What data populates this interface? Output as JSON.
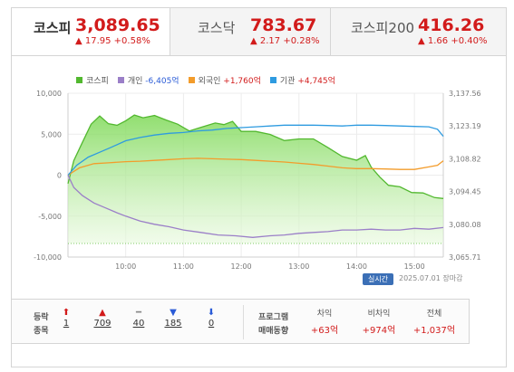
{
  "tabs": [
    {
      "name": "코스피",
      "value": "3,089.65",
      "change": "17.95 +0.58%"
    },
    {
      "name": "코스닥",
      "value": "783.67",
      "change": "2.17 +0.28%"
    },
    {
      "name": "코스피200",
      "value": "416.26",
      "change": "1.66 +0.40%"
    }
  ],
  "legend": [
    {
      "label": "코스피",
      "color": "#52b82f"
    },
    {
      "label": "개인",
      "value": "-6,405억",
      "color": "#9b7fc8",
      "value_color": "#2a5bd7"
    },
    {
      "label": "외국인",
      "value": "+1,760억",
      "color": "#f39c2b",
      "value_color": "#d21b1b"
    },
    {
      "label": "기관",
      "value": "+4,745억",
      "color": "#2e9be0",
      "value_color": "#d21b1b"
    }
  ],
  "chart_data": {
    "type": "line",
    "x_ticks": [
      "10:00",
      "11:00",
      "12:00",
      "13:00",
      "14:00",
      "15:00"
    ],
    "y_left_ticks": [
      "10,000",
      "5,000",
      "0",
      "-5,000",
      "-10,000"
    ],
    "y_right_ticks": [
      "3,137.56",
      "3,123.19",
      "3,108.82",
      "3,094.45",
      "3,080.08",
      "3,065.71"
    ],
    "y_left_range": [
      -10000,
      10000
    ],
    "y_right_range": [
      3065.71,
      3137.56
    ],
    "series": [
      {
        "name": "코스피",
        "axis": "right",
        "color": "#52b82f",
        "points": [
          [
            9.0,
            3097.9
          ],
          [
            9.1,
            3108.0
          ],
          [
            9.25,
            3116.0
          ],
          [
            9.4,
            3124.0
          ],
          [
            9.55,
            3127.6
          ],
          [
            9.7,
            3124.2
          ],
          [
            9.85,
            3123.5
          ],
          [
            10.0,
            3125.5
          ],
          [
            10.15,
            3128.0
          ],
          [
            10.3,
            3126.8
          ],
          [
            10.5,
            3127.8
          ],
          [
            10.7,
            3125.8
          ],
          [
            10.9,
            3124.0
          ],
          [
            11.1,
            3121.0
          ],
          [
            11.3,
            3122.6
          ],
          [
            11.55,
            3124.5
          ],
          [
            11.7,
            3123.8
          ],
          [
            11.85,
            3125.2
          ],
          [
            12.0,
            3120.8
          ],
          [
            12.25,
            3120.8
          ],
          [
            12.5,
            3119.5
          ],
          [
            12.75,
            3116.8
          ],
          [
            13.0,
            3117.5
          ],
          [
            13.25,
            3117.5
          ],
          [
            13.5,
            3113.8
          ],
          [
            13.75,
            3109.8
          ],
          [
            14.0,
            3108.2
          ],
          [
            14.15,
            3110.2
          ],
          [
            14.25,
            3105.2
          ],
          [
            14.4,
            3100.8
          ],
          [
            14.55,
            3097.2
          ],
          [
            14.75,
            3096.5
          ],
          [
            14.95,
            3094.0
          ],
          [
            15.15,
            3093.8
          ],
          [
            15.35,
            3091.8
          ],
          [
            15.5,
            3091.4
          ]
        ]
      },
      {
        "name": "개인",
        "axis": "left",
        "color": "#9b7fc8",
        "points": [
          [
            9.0,
            0
          ],
          [
            9.1,
            -1500
          ],
          [
            9.25,
            -2500
          ],
          [
            9.45,
            -3400
          ],
          [
            9.65,
            -4000
          ],
          [
            9.85,
            -4600
          ],
          [
            10.0,
            -5000
          ],
          [
            10.25,
            -5600
          ],
          [
            10.5,
            -6000
          ],
          [
            10.75,
            -6300
          ],
          [
            11.0,
            -6700
          ],
          [
            11.3,
            -7000
          ],
          [
            11.6,
            -7300
          ],
          [
            11.9,
            -7400
          ],
          [
            12.2,
            -7600
          ],
          [
            12.5,
            -7400
          ],
          [
            12.75,
            -7300
          ],
          [
            13.0,
            -7100
          ],
          [
            13.25,
            -7000
          ],
          [
            13.5,
            -6900
          ],
          [
            13.75,
            -6700
          ],
          [
            14.0,
            -6700
          ],
          [
            14.25,
            -6600
          ],
          [
            14.5,
            -6700
          ],
          [
            14.75,
            -6700
          ],
          [
            15.0,
            -6500
          ],
          [
            15.25,
            -6600
          ],
          [
            15.5,
            -6400
          ]
        ]
      },
      {
        "name": "외국인",
        "axis": "left",
        "color": "#f39c2b",
        "points": [
          [
            9.0,
            0
          ],
          [
            9.2,
            900
          ],
          [
            9.45,
            1400
          ],
          [
            9.7,
            1500
          ],
          [
            10.0,
            1650
          ],
          [
            10.25,
            1700
          ],
          [
            10.5,
            1800
          ],
          [
            10.75,
            1900
          ],
          [
            11.0,
            2000
          ],
          [
            11.25,
            2050
          ],
          [
            11.5,
            2000
          ],
          [
            11.75,
            1950
          ],
          [
            12.0,
            1900
          ],
          [
            12.25,
            1800
          ],
          [
            12.5,
            1700
          ],
          [
            12.75,
            1600
          ],
          [
            13.0,
            1450
          ],
          [
            13.25,
            1300
          ],
          [
            13.5,
            1100
          ],
          [
            13.75,
            900
          ],
          [
            14.0,
            800
          ],
          [
            14.25,
            800
          ],
          [
            14.5,
            750
          ],
          [
            14.75,
            700
          ],
          [
            15.0,
            700
          ],
          [
            15.25,
            1000
          ],
          [
            15.4,
            1200
          ],
          [
            15.5,
            1760
          ]
        ]
      },
      {
        "name": "기관",
        "axis": "left",
        "color": "#2e9be0",
        "points": [
          [
            9.0,
            0
          ],
          [
            9.15,
            1200
          ],
          [
            9.35,
            2200
          ],
          [
            9.55,
            2800
          ],
          [
            9.75,
            3400
          ],
          [
            10.0,
            4200
          ],
          [
            10.25,
            4600
          ],
          [
            10.5,
            4900
          ],
          [
            10.75,
            5100
          ],
          [
            11.0,
            5200
          ],
          [
            11.25,
            5400
          ],
          [
            11.5,
            5500
          ],
          [
            11.75,
            5700
          ],
          [
            12.0,
            5800
          ],
          [
            12.25,
            5900
          ],
          [
            12.5,
            6000
          ],
          [
            12.75,
            6100
          ],
          [
            13.0,
            6100
          ],
          [
            13.25,
            6100
          ],
          [
            13.5,
            6050
          ],
          [
            13.75,
            6000
          ],
          [
            14.0,
            6100
          ],
          [
            14.25,
            6100
          ],
          [
            14.5,
            6050
          ],
          [
            14.75,
            6000
          ],
          [
            15.0,
            5950
          ],
          [
            15.25,
            5900
          ],
          [
            15.4,
            5600
          ],
          [
            15.5,
            4745
          ]
        ]
      }
    ]
  },
  "status": {
    "live_label": "실시간",
    "date": "2025.07.01",
    "session": "장마감"
  },
  "breadth": {
    "label_top": "등락",
    "label_bottom": "종목",
    "items": [
      {
        "name": "upper-limit",
        "icon": "⬆",
        "color": "#d21b1b",
        "value": "1"
      },
      {
        "name": "rise",
        "icon": "▲",
        "color": "#d21b1b",
        "value": "709"
      },
      {
        "name": "flat",
        "icon": "━",
        "color": "#888888",
        "value": "40"
      },
      {
        "name": "fall",
        "icon": "▼",
        "color": "#2a5bd7",
        "value": "185"
      },
      {
        "name": "lower-limit",
        "icon": "⬇",
        "color": "#2a5bd7",
        "value": "0"
      }
    ]
  },
  "program": {
    "label_top": "프로그램",
    "label_bottom": "매매동향",
    "items": [
      {
        "name": "차익",
        "value": "+63억"
      },
      {
        "name": "비차익",
        "value": "+974억"
      },
      {
        "name": "전체",
        "value": "+1,037억"
      }
    ]
  }
}
